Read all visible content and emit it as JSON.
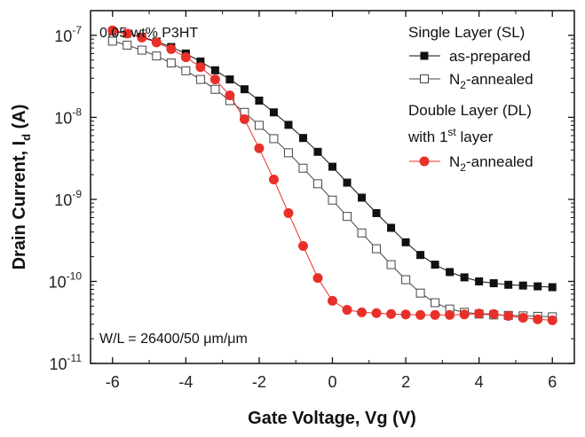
{
  "chart_data": {
    "type": "scatter",
    "xlabel": "Gate Voltage, Vg (V)",
    "ylabel": {
      "main": "Drain Current, I",
      "sub": "d",
      "unit": " (A)"
    },
    "xlim": [
      -6.6,
      6.6
    ],
    "ylim": [
      1e-11,
      2e-07
    ],
    "y_scale": "log",
    "grid": false,
    "x_ticks": [
      -6,
      -4,
      -2,
      0,
      2,
      4,
      6
    ],
    "x_tick_labels": [
      "-6",
      "-4",
      "-2",
      "0",
      "2",
      "4",
      "6"
    ],
    "y_ticks": [
      1e-11,
      1e-10,
      1e-09,
      1e-08,
      1e-07
    ],
    "y_tick_labels": [
      {
        "base": "10",
        "exp": "-11"
      },
      {
        "base": "10",
        "exp": "-10"
      },
      {
        "base": "10",
        "exp": "-9"
      },
      {
        "base": "10",
        "exp": "-8"
      },
      {
        "base": "10",
        "exp": "-7"
      }
    ],
    "annotations": {
      "top_left": "0.05 wt% P3HT",
      "bottom_left": "W/L = 26400/50 μm/μm"
    },
    "legend": {
      "position": "top-right",
      "group1_title": "Single Layer (SL)",
      "group2_title_line1": "Double Layer (DL)",
      "group2_title_line2": {
        "pre": "with 1",
        "sup": "st",
        "post": " layer"
      }
    },
    "series": [
      {
        "label": "as-prepared",
        "marker": "square-filled",
        "color": "#111111",
        "x": [
          -6.0,
          -5.6,
          -5.2,
          -4.8,
          -4.4,
          -4.0,
          -3.6,
          -3.2,
          -2.8,
          -2.4,
          -2.0,
          -1.6,
          -1.2,
          -0.8,
          -0.4,
          0.0,
          0.4,
          0.8,
          1.2,
          1.6,
          2.0,
          2.4,
          2.8,
          3.2,
          3.6,
          4.0,
          4.4,
          4.8,
          5.2,
          5.6,
          6.0
        ],
        "y": [
          1.12e-07,
          1.05e-07,
          9.6e-08,
          8.4e-08,
          7.2e-08,
          6e-08,
          4.8e-08,
          3.75e-08,
          2.9e-08,
          2.2e-08,
          1.6e-08,
          1.15e-08,
          8.1e-09,
          5.6e-09,
          3.8e-09,
          2.5e-09,
          1.6e-09,
          1.05e-09,
          6.8e-10,
          4.5e-10,
          3e-10,
          2.1e-10,
          1.6e-10,
          1.3e-10,
          1.12e-10,
          1e-10,
          9.5e-11,
          9.1e-11,
          8.9e-11,
          8.7e-11,
          8.5e-11
        ]
      },
      {
        "label": "N2-annealed",
        "label_parts": {
          "pre": "N",
          "sub": "2",
          "post": "-annealed"
        },
        "marker": "square-open",
        "color": "#444444",
        "x": [
          -6.0,
          -5.6,
          -5.2,
          -4.8,
          -4.4,
          -4.0,
          -3.6,
          -3.2,
          -2.8,
          -2.4,
          -2.0,
          -1.6,
          -1.2,
          -0.8,
          -0.4,
          0.0,
          0.4,
          0.8,
          1.2,
          1.6,
          2.0,
          2.4,
          2.8,
          3.2,
          3.6,
          4.0,
          4.4,
          4.8,
          5.2,
          5.6,
          6.0
        ],
        "y": [
          8.5e-08,
          7.6e-08,
          6.6e-08,
          5.6e-08,
          4.6e-08,
          3.7e-08,
          2.9e-08,
          2.2e-08,
          1.6e-08,
          1.15e-08,
          8e-09,
          5.5e-09,
          3.7e-09,
          2.4e-09,
          1.55e-09,
          9.8e-10,
          6.2e-10,
          3.9e-10,
          2.5e-10,
          1.6e-10,
          1.05e-10,
          7.2e-11,
          5.5e-11,
          4.6e-11,
          4.2e-11,
          4e-11,
          3.9e-11,
          3.85e-11,
          3.8e-11,
          3.75e-11,
          3.7e-11
        ]
      },
      {
        "label": "N2-annealed",
        "label_parts": {
          "pre": "N",
          "sub": "2",
          "post": "-annealed"
        },
        "marker": "circle-filled",
        "color": "#e8302a",
        "x": [
          -6.0,
          -5.6,
          -5.2,
          -4.8,
          -4.4,
          -4.0,
          -3.6,
          -3.2,
          -2.8,
          -2.4,
          -2.0,
          -1.6,
          -1.2,
          -0.8,
          -0.4,
          0.0,
          0.4,
          0.8,
          1.2,
          1.6,
          2.0,
          2.4,
          2.8,
          3.2,
          3.6,
          4.0,
          4.4,
          4.8,
          5.2,
          5.6,
          6.0
        ],
        "y": [
          1.15e-07,
          1.05e-07,
          9.4e-08,
          8.2e-08,
          6.8e-08,
          5.4e-08,
          4.1e-08,
          2.9e-08,
          1.85e-08,
          9.5e-09,
          4.2e-09,
          1.75e-09,
          6.8e-10,
          2.7e-10,
          1.1e-10,
          5.8e-11,
          4.5e-11,
          4.2e-11,
          4.1e-11,
          4e-11,
          3.95e-11,
          3.9e-11,
          3.9e-11,
          3.9e-11,
          3.95e-11,
          4.05e-11,
          4e-11,
          3.8e-11,
          3.6e-11,
          3.45e-11,
          3.35e-11
        ]
      }
    ]
  }
}
